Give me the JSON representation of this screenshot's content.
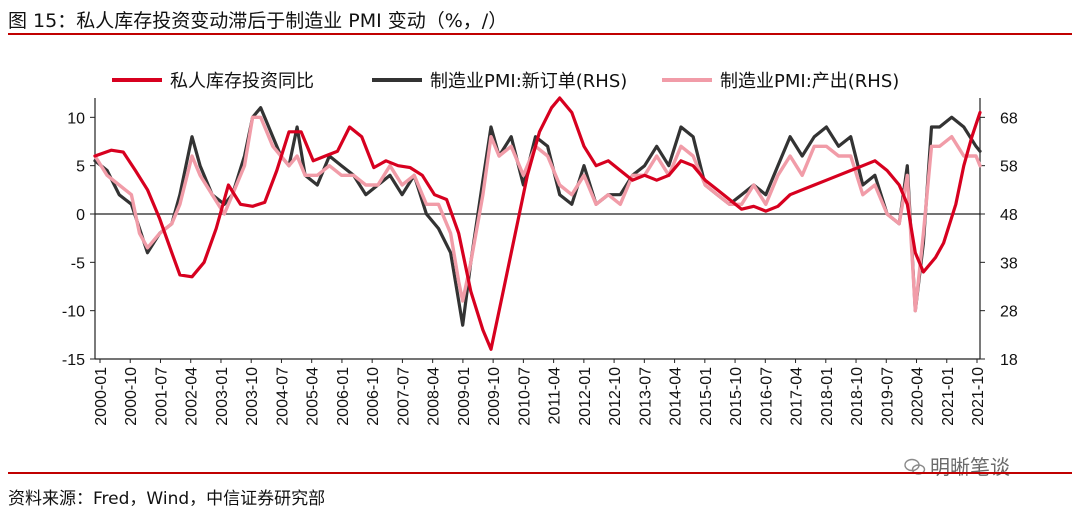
{
  "figure": {
    "title": "图 15：私人库存投资变动滞后于制造业 PMI 变动（%，/）",
    "source": "资料来源：Fred，Wind，中信证券研究部",
    "watermark": "明晰笔谈",
    "colors": {
      "rule": "#c00000",
      "series_private_inventory": "#d7001f",
      "series_new_orders": "#333333",
      "series_output": "#f19ca8"
    }
  },
  "chart_data": {
    "type": "line",
    "title": "私人库存投资变动滞后于制造业 PMI 变动（%，/）",
    "x_ticks": [
      "2000-01",
      "2000-10",
      "2001-07",
      "2002-04",
      "2003-01",
      "2003-10",
      "2004-07",
      "2005-04",
      "2006-01",
      "2006-10",
      "2007-07",
      "2008-04",
      "2009-01",
      "2009-10",
      "2010-07",
      "2011-04",
      "2012-01",
      "2012-10",
      "2013-07",
      "2014-04",
      "2015-01",
      "2015-10",
      "2016-07",
      "2017-04",
      "2018-01",
      "2018-10",
      "2019-07",
      "2020-04",
      "2021-01",
      "2021-10"
    ],
    "x_range": [
      2000.0,
      2021.9
    ],
    "left_axis": {
      "ylim": [
        -15,
        12
      ],
      "ticks": [
        10,
        5,
        0,
        -5,
        -10,
        -15
      ]
    },
    "right_axis": {
      "ylim": [
        18,
        72
      ],
      "ticks": [
        68,
        58,
        48,
        38,
        28,
        18
      ]
    },
    "series": [
      {
        "name": "私人库存投资同比",
        "axis": "left",
        "color": "#d7001f",
        "points": [
          [
            2000.0,
            6.0
          ],
          [
            2000.4,
            6.6
          ],
          [
            2000.7,
            6.4
          ],
          [
            2001.0,
            4.5
          ],
          [
            2001.3,
            2.5
          ],
          [
            2001.6,
            -0.5
          ],
          [
            2001.9,
            -4.0
          ],
          [
            2002.1,
            -6.3
          ],
          [
            2002.4,
            -6.5
          ],
          [
            2002.7,
            -5.0
          ],
          [
            2003.0,
            -1.5
          ],
          [
            2003.3,
            3.0
          ],
          [
            2003.6,
            1.0
          ],
          [
            2003.9,
            0.8
          ],
          [
            2004.2,
            1.2
          ],
          [
            2004.5,
            4.5
          ],
          [
            2004.8,
            8.5
          ],
          [
            2005.1,
            8.5
          ],
          [
            2005.4,
            5.5
          ],
          [
            2005.7,
            6.0
          ],
          [
            2006.0,
            6.5
          ],
          [
            2006.3,
            9.0
          ],
          [
            2006.6,
            8.0
          ],
          [
            2006.9,
            4.8
          ],
          [
            2007.2,
            5.5
          ],
          [
            2007.5,
            5.0
          ],
          [
            2007.8,
            4.8
          ],
          [
            2008.1,
            4.0
          ],
          [
            2008.4,
            2.0
          ],
          [
            2008.7,
            1.5
          ],
          [
            2009.0,
            -2.0
          ],
          [
            2009.3,
            -8.0
          ],
          [
            2009.6,
            -12.0
          ],
          [
            2009.8,
            -14.0
          ],
          [
            2010.1,
            -8.0
          ],
          [
            2010.4,
            -2.0
          ],
          [
            2010.7,
            4.0
          ],
          [
            2011.0,
            8.5
          ],
          [
            2011.3,
            11.0
          ],
          [
            2011.5,
            12.0
          ],
          [
            2011.8,
            10.5
          ],
          [
            2012.1,
            7.0
          ],
          [
            2012.4,
            5.0
          ],
          [
            2012.7,
            5.5
          ],
          [
            2013.0,
            4.5
          ],
          [
            2013.3,
            3.5
          ],
          [
            2013.6,
            4.0
          ],
          [
            2013.9,
            3.5
          ],
          [
            2014.2,
            4.0
          ],
          [
            2014.5,
            5.5
          ],
          [
            2014.8,
            5.0
          ],
          [
            2015.1,
            3.5
          ],
          [
            2015.4,
            2.5
          ],
          [
            2015.7,
            1.5
          ],
          [
            2016.0,
            0.5
          ],
          [
            2016.3,
            0.8
          ],
          [
            2016.6,
            0.3
          ],
          [
            2016.9,
            0.8
          ],
          [
            2017.2,
            2.0
          ],
          [
            2017.5,
            2.5
          ],
          [
            2017.8,
            3.0
          ],
          [
            2018.1,
            3.5
          ],
          [
            2018.4,
            4.0
          ],
          [
            2018.7,
            4.5
          ],
          [
            2019.0,
            5.0
          ],
          [
            2019.3,
            5.5
          ],
          [
            2019.6,
            4.5
          ],
          [
            2019.9,
            3.0
          ],
          [
            2020.1,
            1.0
          ],
          [
            2020.3,
            -4.0
          ],
          [
            2020.5,
            -6.0
          ],
          [
            2020.8,
            -4.5
          ],
          [
            2021.0,
            -3.0
          ],
          [
            2021.3,
            1.0
          ],
          [
            2021.5,
            5.0
          ],
          [
            2021.7,
            8.0
          ],
          [
            2021.9,
            10.5
          ]
        ]
      },
      {
        "name": "制造业PMI:新订单(RHS)",
        "axis": "right",
        "color": "#333333",
        "points": [
          [
            2000.0,
            59
          ],
          [
            2000.3,
            57
          ],
          [
            2000.6,
            52
          ],
          [
            2000.9,
            50
          ],
          [
            2001.1,
            45
          ],
          [
            2001.3,
            40
          ],
          [
            2001.6,
            44
          ],
          [
            2001.9,
            46
          ],
          [
            2002.1,
            52
          ],
          [
            2002.4,
            64
          ],
          [
            2002.6,
            58
          ],
          [
            2002.9,
            52
          ],
          [
            2003.2,
            50
          ],
          [
            2003.4,
            52
          ],
          [
            2003.7,
            60
          ],
          [
            2003.9,
            68
          ],
          [
            2004.1,
            70
          ],
          [
            2004.4,
            64
          ],
          [
            2004.6,
            60
          ],
          [
            2004.8,
            58
          ],
          [
            2005.0,
            66
          ],
          [
            2005.2,
            56
          ],
          [
            2005.5,
            54
          ],
          [
            2005.8,
            60
          ],
          [
            2006.1,
            58
          ],
          [
            2006.4,
            56
          ],
          [
            2006.7,
            52
          ],
          [
            2007.0,
            54
          ],
          [
            2007.3,
            56
          ],
          [
            2007.6,
            52
          ],
          [
            2007.9,
            56
          ],
          [
            2008.2,
            48
          ],
          [
            2008.5,
            45
          ],
          [
            2008.8,
            40
          ],
          [
            2009.0,
            30
          ],
          [
            2009.1,
            25
          ],
          [
            2009.3,
            38
          ],
          [
            2009.6,
            55
          ],
          [
            2009.8,
            66
          ],
          [
            2010.0,
            60
          ],
          [
            2010.3,
            64
          ],
          [
            2010.6,
            54
          ],
          [
            2010.9,
            64
          ],
          [
            2011.2,
            62
          ],
          [
            2011.5,
            52
          ],
          [
            2011.8,
            50
          ],
          [
            2012.1,
            58
          ],
          [
            2012.4,
            50
          ],
          [
            2012.7,
            52
          ],
          [
            2013.0,
            52
          ],
          [
            2013.3,
            56
          ],
          [
            2013.6,
            58
          ],
          [
            2013.9,
            62
          ],
          [
            2014.2,
            58
          ],
          [
            2014.5,
            66
          ],
          [
            2014.8,
            64
          ],
          [
            2015.1,
            54
          ],
          [
            2015.4,
            52
          ],
          [
            2015.7,
            50
          ],
          [
            2016.0,
            52
          ],
          [
            2016.3,
            54
          ],
          [
            2016.6,
            52
          ],
          [
            2016.9,
            58
          ],
          [
            2017.2,
            64
          ],
          [
            2017.5,
            60
          ],
          [
            2017.8,
            64
          ],
          [
            2018.1,
            66
          ],
          [
            2018.4,
            62
          ],
          [
            2018.7,
            64
          ],
          [
            2019.0,
            54
          ],
          [
            2019.3,
            56
          ],
          [
            2019.6,
            48
          ],
          [
            2019.9,
            46
          ],
          [
            2020.1,
            58
          ],
          [
            2020.3,
            28
          ],
          [
            2020.5,
            42
          ],
          [
            2020.7,
            66
          ],
          [
            2020.9,
            66
          ],
          [
            2021.2,
            68
          ],
          [
            2021.5,
            66
          ],
          [
            2021.8,
            62
          ],
          [
            2021.9,
            61
          ]
        ]
      },
      {
        "name": "制造业PMI:产出(RHS)",
        "axis": "right",
        "color": "#f19ca8",
        "points": [
          [
            2000.0,
            60
          ],
          [
            2000.3,
            56
          ],
          [
            2000.6,
            54
          ],
          [
            2000.9,
            52
          ],
          [
            2001.1,
            44
          ],
          [
            2001.3,
            41
          ],
          [
            2001.6,
            44
          ],
          [
            2001.9,
            46
          ],
          [
            2002.1,
            50
          ],
          [
            2002.4,
            60
          ],
          [
            2002.6,
            56
          ],
          [
            2002.9,
            52
          ],
          [
            2003.2,
            48
          ],
          [
            2003.4,
            52
          ],
          [
            2003.7,
            58
          ],
          [
            2003.9,
            68
          ],
          [
            2004.1,
            68
          ],
          [
            2004.4,
            62
          ],
          [
            2004.6,
            60
          ],
          [
            2004.8,
            58
          ],
          [
            2005.0,
            60
          ],
          [
            2005.2,
            56
          ],
          [
            2005.5,
            56
          ],
          [
            2005.8,
            58
          ],
          [
            2006.1,
            56
          ],
          [
            2006.4,
            56
          ],
          [
            2006.7,
            54
          ],
          [
            2007.0,
            54
          ],
          [
            2007.3,
            58
          ],
          [
            2007.6,
            54
          ],
          [
            2007.9,
            56
          ],
          [
            2008.2,
            50
          ],
          [
            2008.5,
            50
          ],
          [
            2008.8,
            44
          ],
          [
            2009.0,
            34
          ],
          [
            2009.1,
            30
          ],
          [
            2009.3,
            38
          ],
          [
            2009.6,
            52
          ],
          [
            2009.8,
            64
          ],
          [
            2010.0,
            60
          ],
          [
            2010.3,
            62
          ],
          [
            2010.6,
            56
          ],
          [
            2010.9,
            62
          ],
          [
            2011.2,
            60
          ],
          [
            2011.5,
            54
          ],
          [
            2011.8,
            52
          ],
          [
            2012.1,
            56
          ],
          [
            2012.4,
            50
          ],
          [
            2012.7,
            52
          ],
          [
            2013.0,
            50
          ],
          [
            2013.3,
            56
          ],
          [
            2013.6,
            56
          ],
          [
            2013.9,
            60
          ],
          [
            2014.2,
            56
          ],
          [
            2014.5,
            62
          ],
          [
            2014.8,
            60
          ],
          [
            2015.1,
            54
          ],
          [
            2015.4,
            52
          ],
          [
            2015.7,
            50
          ],
          [
            2016.0,
            50
          ],
          [
            2016.3,
            54
          ],
          [
            2016.6,
            50
          ],
          [
            2016.9,
            56
          ],
          [
            2017.2,
            60
          ],
          [
            2017.5,
            56
          ],
          [
            2017.8,
            62
          ],
          [
            2018.1,
            62
          ],
          [
            2018.4,
            60
          ],
          [
            2018.7,
            60
          ],
          [
            2019.0,
            52
          ],
          [
            2019.3,
            54
          ],
          [
            2019.6,
            48
          ],
          [
            2019.9,
            46
          ],
          [
            2020.1,
            56
          ],
          [
            2020.3,
            28
          ],
          [
            2020.5,
            44
          ],
          [
            2020.7,
            62
          ],
          [
            2020.9,
            62
          ],
          [
            2021.2,
            64
          ],
          [
            2021.5,
            60
          ],
          [
            2021.8,
            60
          ],
          [
            2021.9,
            58
          ]
        ]
      }
    ],
    "legend": {
      "placement": "top",
      "labels": [
        "私人库存投资同比",
        "制造业PMI:新订单(RHS)",
        "制造业PMI:产出(RHS)"
      ]
    }
  }
}
